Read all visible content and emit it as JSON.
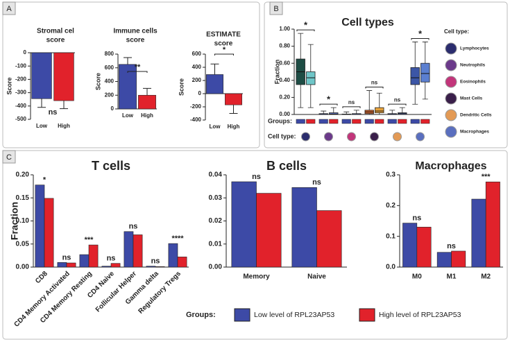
{
  "panel_labels": [
    "A",
    "B",
    "C"
  ],
  "legend": {
    "title": "Groups:",
    "items": [
      {
        "name": "Low level of RPL23AP53",
        "color": "#3d4aa6"
      },
      {
        "name": "High level of RPL23AP53",
        "color": "#e1222b"
      }
    ]
  },
  "chart_data": [
    {
      "type": "bar",
      "title": [
        "Stromal cel",
        "score"
      ],
      "ylabel": "Score",
      "categories": [
        "Low",
        "High"
      ],
      "series": [
        {
          "values": [
            -345,
            -360
          ],
          "errors": [
            65,
            60
          ],
          "colors": [
            "#3d4aa6",
            "#e1222b"
          ]
        }
      ],
      "ylim": [
        -500,
        0
      ],
      "yticks": [
        0,
        -100,
        -200,
        -300,
        -400,
        -500
      ],
      "annotation": "ns"
    },
    {
      "type": "bar",
      "title": [
        "Immune cells",
        "score"
      ],
      "ylabel": "Score",
      "categories": [
        "Low",
        "High"
      ],
      "series": [
        {
          "values": [
            650,
            200
          ],
          "errors": [
            100,
            100
          ],
          "colors": [
            "#3d4aa6",
            "#e1222b"
          ]
        }
      ],
      "ylim": [
        0,
        800
      ],
      "yticks": [
        0,
        200,
        400,
        600,
        800
      ],
      "annotation": "**"
    },
    {
      "type": "bar",
      "title": [
        "ESTIMATE",
        "score"
      ],
      "ylabel": "Score",
      "categories": [
        "Low",
        "High"
      ],
      "series": [
        {
          "values": [
            290,
            -170
          ],
          "errors": [
            160,
            130
          ],
          "colors": [
            "#3d4aa6",
            "#e1222b"
          ]
        }
      ],
      "ylim": [
        -400,
        600
      ],
      "yticks": [
        -400,
        -200,
        0,
        200,
        400,
        600
      ],
      "annotation": "*"
    },
    {
      "type": "box",
      "title": "Cell types",
      "ylabel": "Fraction",
      "groups_label": "Groups:",
      "cell_type_label": "Cell type:",
      "categories": [
        "Lymphocytes",
        "Neutrophils",
        "Eosinophils",
        "Mast Cells",
        "Dendritic Cells",
        "Macrophages"
      ],
      "series": [
        {
          "colors": [
            "#1e4d45",
            "#3b4fa0",
            "#3b4fa0",
            "#d4652a",
            "#3b4fa0",
            "#3c56a6"
          ],
          "boxes": [
            {
              "min": 0.08,
              "q1": 0.35,
              "median": 0.5,
              "q3": 0.65,
              "max": 0.95
            },
            {
              "min": 0,
              "q1": 0,
              "median": 0,
              "q3": 0.01,
              "max": 0.04
            },
            {
              "min": 0,
              "q1": 0,
              "median": 0,
              "q3": 0.005,
              "max": 0.03
            },
            {
              "min": 0,
              "q1": 0.01,
              "median": 0.03,
              "q3": 0.05,
              "max": 0.28
            },
            {
              "min": 0,
              "q1": 0,
              "median": 0,
              "q3": 0.01,
              "max": 0.05
            },
            {
              "min": 0.12,
              "q1": 0.35,
              "median": 0.43,
              "q3": 0.55,
              "max": 0.85
            }
          ]
        },
        {
          "colors": [
            "#6fc6c8",
            "#6a7fcf",
            "#6a7fcf",
            "#e8a33c",
            "#6a7fcf",
            "#5b7fd0"
          ],
          "boxes": [
            {
              "min": 0.08,
              "q1": 0.35,
              "median": 0.43,
              "q3": 0.5,
              "max": 0.82
            },
            {
              "min": 0,
              "q1": 0,
              "median": 0.005,
              "q3": 0.02,
              "max": 0.08
            },
            {
              "min": 0,
              "q1": 0,
              "median": 0,
              "q3": 0.01,
              "max": 0.05
            },
            {
              "min": 0,
              "q1": 0.02,
              "median": 0.04,
              "q3": 0.08,
              "max": 0.25
            },
            {
              "min": 0,
              "q1": 0,
              "median": 0.01,
              "q3": 0.02,
              "max": 0.08
            },
            {
              "min": 0.18,
              "q1": 0.38,
              "median": 0.48,
              "q3": 0.6,
              "max": 0.85
            }
          ]
        }
      ],
      "ylim": [
        0,
        1
      ],
      "yticks": [
        {
          "value": 0,
          "label": "0.00"
        },
        {
          "value": 0.2,
          "label": "0.20"
        },
        {
          "value": 0.4,
          "label": "0.40"
        },
        {
          "value": 0.6,
          "label": "0.60"
        },
        {
          "value": 0.8,
          "label": "0.80"
        },
        {
          "value": 1,
          "label": "1.00"
        }
      ],
      "annotations": [
        "*",
        "*",
        "ns",
        "ns",
        "ns",
        "*"
      ]
    },
    {
      "type": "bar",
      "title": "T cells",
      "ylabel": "Fraction",
      "categories": [
        "CD8",
        "CD4 Memory Activated",
        "CD4 Memory Resting",
        "CD4 Naive",
        "Follicular Helper",
        "Gamma delta",
        "Regulatory Tregs"
      ],
      "series": [
        {
          "values": [
            0.178,
            0.01,
            0.027,
            0.002,
            0.077,
            0.002,
            0.051
          ],
          "color": "#3d4aa6"
        },
        {
          "values": [
            0.149,
            0.009,
            0.048,
            0.008,
            0.07,
            0.001,
            0.022
          ],
          "color": "#e1222b"
        }
      ],
      "ylim": [
        0,
        0.2
      ],
      "yticks": [
        {
          "value": 0,
          "label": "0.00"
        },
        0.05,
        {
          "value": 0.1,
          "label": "0.10"
        },
        0.15,
        {
          "value": 0.2,
          "label": "0.20"
        }
      ],
      "xtick_rotation": -45,
      "annotations": [
        "*",
        "ns",
        "***",
        "ns",
        "ns",
        "ns",
        "****"
      ]
    },
    {
      "type": "bar",
      "title": "B cells",
      "categories": [
        "Memory",
        "Naive"
      ],
      "series": [
        {
          "values": [
            0.037,
            0.0345
          ],
          "color": "#3d4aa6"
        },
        {
          "values": [
            0.032,
            0.0245
          ],
          "color": "#e1222b"
        }
      ],
      "ylim": [
        0,
        0.04
      ],
      "yticks": [
        {
          "value": 0,
          "label": "0.00"
        },
        0.01,
        0.02,
        0.03,
        0.04
      ],
      "annotations": [
        "ns",
        "ns"
      ]
    },
    {
      "type": "bar",
      "title": "Macrophages",
      "categories": [
        "M0",
        "M1",
        "M2"
      ],
      "series": [
        {
          "values": [
            0.143,
            0.048,
            0.221
          ],
          "color": "#3d4aa6"
        },
        {
          "values": [
            0.13,
            0.052,
            0.277
          ],
          "color": "#e1222b"
        }
      ],
      "ylim": [
        0,
        0.3
      ],
      "yticks": [
        {
          "value": 0,
          "label": "0.0"
        },
        0.1,
        0.2,
        0.3
      ],
      "annotations": [
        "ns",
        "ns",
        "***"
      ]
    }
  ]
}
